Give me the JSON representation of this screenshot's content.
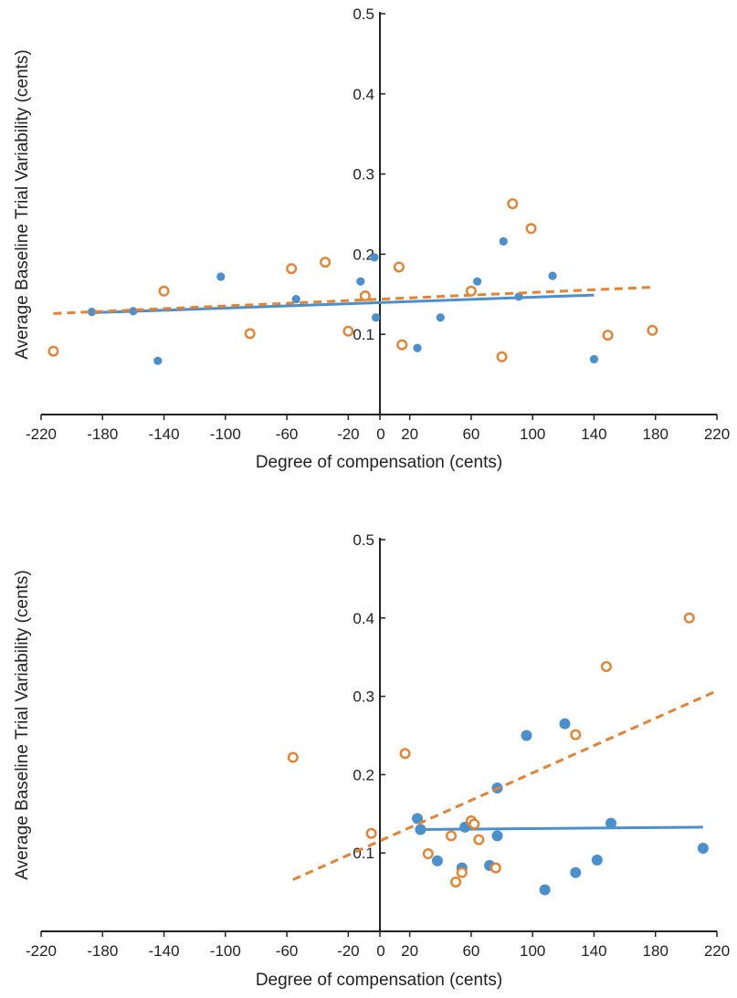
{
  "chart_data": [
    {
      "type": "scatter",
      "xlabel": "Degree of compensation (cents)",
      "ylabel": "Average Baseline Trial Variability (cents)",
      "xlim": [
        -220,
        220
      ],
      "ylim": [
        0,
        0.5
      ],
      "x_ticks": [
        "-220",
        "-180",
        "-140",
        "-100",
        "-60",
        "-20",
        "0",
        "20",
        "60",
        "100",
        "140",
        "180",
        "220"
      ],
      "x_tick_values": [
        -220,
        -180,
        -140,
        -100,
        -60,
        -20,
        0,
        20,
        60,
        100,
        140,
        180,
        220
      ],
      "y_ticks": [
        "0.1",
        "0.2",
        "0.3",
        "0.4",
        "0.5"
      ],
      "y_tick_values": [
        0.1,
        0.2,
        0.3,
        0.4,
        0.5
      ],
      "series": [
        {
          "marker": "filled-circle",
          "color": "#4a90cf",
          "points": [
            [
              -187,
              0.128
            ],
            [
              -160,
              0.129
            ],
            [
              -144,
              0.067
            ],
            [
              -103,
              0.172
            ],
            [
              -54,
              0.144
            ],
            [
              -12,
              0.166
            ],
            [
              -3,
              0.196
            ],
            [
              -2,
              0.121
            ],
            [
              25,
              0.083
            ],
            [
              40,
              0.121
            ],
            [
              64,
              0.166
            ],
            [
              81,
              0.216
            ],
            [
              91,
              0.147
            ],
            [
              113,
              0.173
            ],
            [
              140,
              0.069
            ]
          ],
          "fit": {
            "style": "solid",
            "x": [
              -187,
              140
            ],
            "y": [
              0.127,
              0.149
            ]
          }
        },
        {
          "marker": "open-circle",
          "color": "#e8822e",
          "points": [
            [
              -212,
              0.079
            ],
            [
              -140,
              0.154
            ],
            [
              -84,
              0.101
            ],
            [
              -57,
              0.182
            ],
            [
              -35,
              0.19
            ],
            [
              -20,
              0.104
            ],
            [
              -9,
              0.148
            ],
            [
              13,
              0.184
            ],
            [
              15,
              0.087
            ],
            [
              60,
              0.154
            ],
            [
              80,
              0.072
            ],
            [
              87,
              0.263
            ],
            [
              99,
              0.232
            ],
            [
              149,
              0.099
            ],
            [
              178,
              0.105
            ]
          ],
          "fit": {
            "style": "dashed",
            "x": [
              -212,
              180
            ],
            "y": [
              0.126,
              0.159
            ]
          }
        }
      ]
    },
    {
      "type": "scatter",
      "xlabel": "Degree of compensation (cents)",
      "ylabel": "Average Baseline Trial Variability (cents)",
      "xlim": [
        -220,
        220
      ],
      "ylim": [
        0,
        0.5
      ],
      "x_ticks": [
        "-220",
        "-180",
        "-140",
        "-100",
        "-60",
        "-20",
        "0",
        "20",
        "60",
        "100",
        "140",
        "180",
        "220"
      ],
      "x_tick_values": [
        -220,
        -180,
        -140,
        -100,
        -60,
        -20,
        0,
        20,
        60,
        100,
        140,
        180,
        220
      ],
      "y_ticks": [
        "0.1",
        "0.2",
        "0.3",
        "0.4",
        "0.5"
      ],
      "y_tick_values": [
        0.1,
        0.2,
        0.3,
        0.4,
        0.5
      ],
      "series": [
        {
          "marker": "filled-circle",
          "color": "#4a90cf",
          "points": [
            [
              25,
              0.144
            ],
            [
              27,
              0.13
            ],
            [
              38,
              0.09
            ],
            [
              54,
              0.081
            ],
            [
              56,
              0.133
            ],
            [
              72,
              0.084
            ],
            [
              77,
              0.183
            ],
            [
              77,
              0.122
            ],
            [
              96,
              0.25
            ],
            [
              108,
              0.053
            ],
            [
              121,
              0.265
            ],
            [
              128,
              0.075
            ],
            [
              142,
              0.091
            ],
            [
              151,
              0.138
            ],
            [
              211,
              0.106
            ]
          ],
          "fit": {
            "style": "solid",
            "x": [
              27,
              211
            ],
            "y": [
              0.13,
              0.133
            ]
          }
        },
        {
          "marker": "open-circle",
          "color": "#e8822e",
          "points": [
            [
              -56,
              0.222
            ],
            [
              -5,
              0.125
            ],
            [
              17,
              0.227
            ],
            [
              32,
              0.099
            ],
            [
              47,
              0.122
            ],
            [
              50,
              0.063
            ],
            [
              54,
              0.075
            ],
            [
              60,
              0.141
            ],
            [
              62,
              0.137
            ],
            [
              65,
              0.117
            ],
            [
              76,
              0.081
            ],
            [
              128,
              0.251
            ],
            [
              148,
              0.338
            ],
            [
              202,
              0.4
            ]
          ],
          "fit": {
            "style": "dashed",
            "x": [
              -56,
              220
            ],
            "y": [
              0.066,
              0.307
            ]
          }
        }
      ]
    }
  ]
}
